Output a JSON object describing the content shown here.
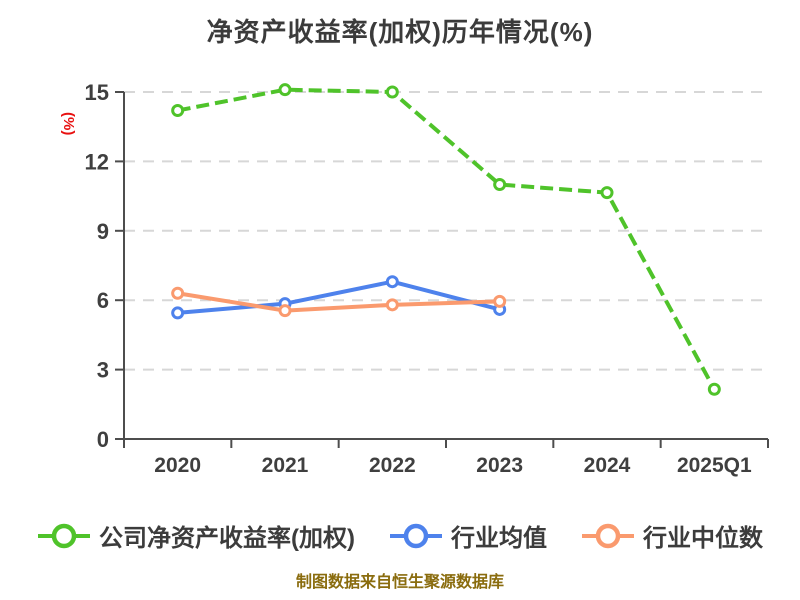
{
  "page": {
    "title": "净资产收益率(加权)历年情况(%)",
    "source_note": "制图数据来自恒生聚源数据库",
    "source_note_color": "#8a6c0e"
  },
  "chart_data": {
    "type": "line",
    "title": "净资产收益率(加权)历年情况(%)",
    "categories": [
      "2020",
      "2021",
      "2022",
      "2023",
      "2024",
      "2025Q1"
    ],
    "series": [
      {
        "name": "公司净资产收益率(加权)",
        "color": "#4fc32a",
        "line_style": "dashed",
        "values": [
          14.2,
          15.1,
          15.0,
          11.0,
          10.65,
          2.15
        ]
      },
      {
        "name": "行业均值",
        "color": "#4e82ec",
        "line_style": "solid",
        "values": [
          5.45,
          5.85,
          6.8,
          5.6,
          null,
          null
        ]
      },
      {
        "name": "行业中位数",
        "color": "#fa9a6e",
        "line_style": "solid",
        "values": [
          6.3,
          5.55,
          5.8,
          5.95,
          null,
          null
        ]
      }
    ],
    "xlabel": "",
    "ylabel": "(%)",
    "ylabel_color": "#e81010",
    "yticks": [
      0,
      3,
      6,
      9,
      12,
      15
    ],
    "ylim": [
      0,
      15
    ],
    "grid": true,
    "grid_color": "#d7d7d7",
    "axis_color": "#4d4d4d",
    "tick_label_color": "#3f3f3f",
    "legend_position": "bottom",
    "source_note": "制图数据来自恒生聚源数据库"
  }
}
